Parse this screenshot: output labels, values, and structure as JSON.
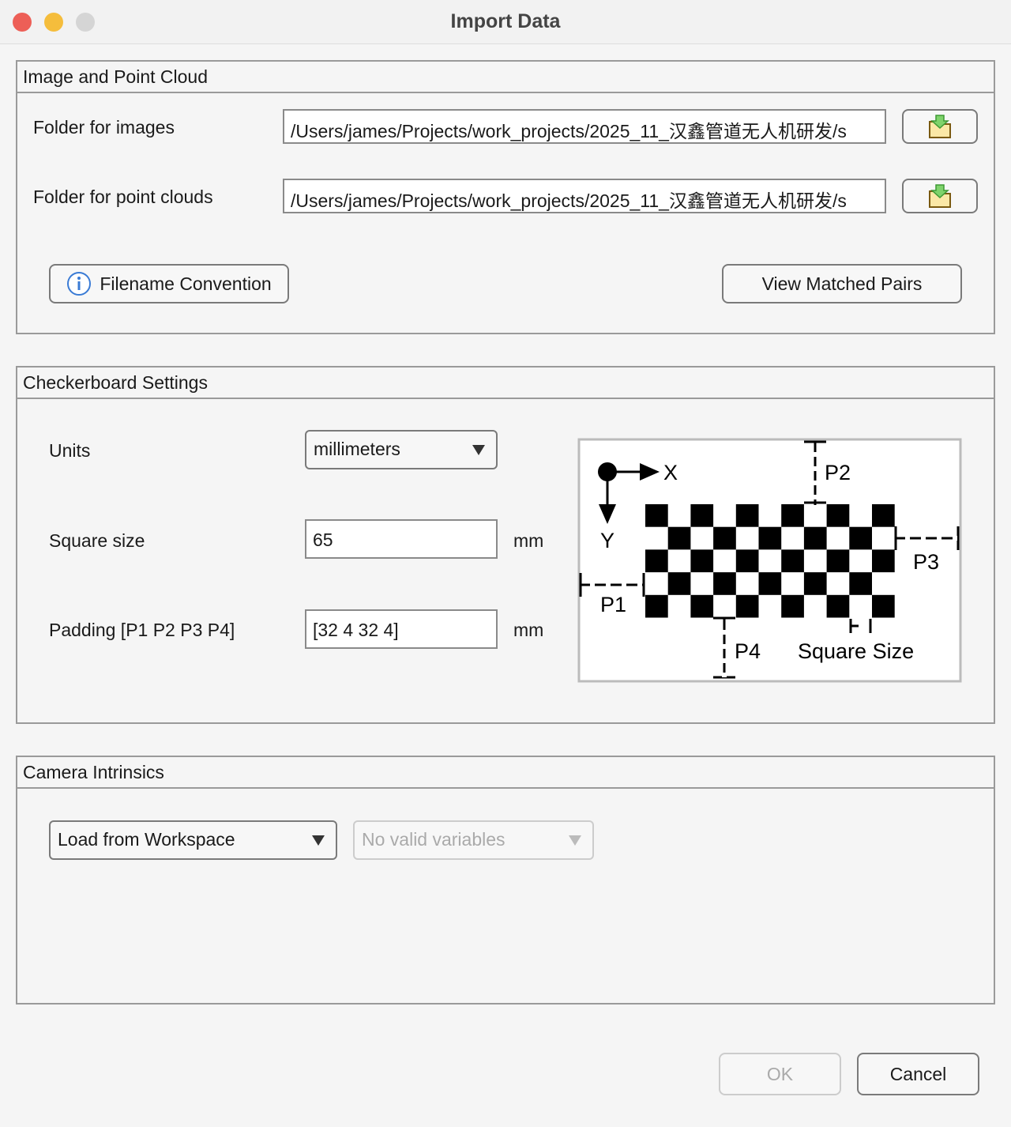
{
  "window": {
    "title": "Import Data"
  },
  "image_panel": {
    "title": "Image and Point Cloud",
    "images_label": "Folder for images",
    "images_value": "/Users/james/Projects/work_projects/2025_11_汉鑫管道无人机研发/s",
    "clouds_label": "Folder for point clouds",
    "clouds_value": "/Users/james/Projects/work_projects/2025_11_汉鑫管道无人机研发/s",
    "browse_icon": "folder-download-icon",
    "filename_convention": "Filename Convention",
    "view_matched_pairs": "View Matched Pairs"
  },
  "checkerboard": {
    "title": "Checkerboard Settings",
    "units_label": "Units",
    "units_value": "millimeters",
    "square_label": "Square size",
    "square_value": "65",
    "square_unit": "mm",
    "padding_label": "Padding [P1 P2 P3 P4]",
    "padding_value": "[32 4 32 4]",
    "padding_unit": "mm",
    "diagram": {
      "x": "X",
      "y": "Y",
      "p1": "P1",
      "p2": "P2",
      "p3": "P3",
      "p4": "P4",
      "square_size": "Square Size"
    }
  },
  "intrinsics": {
    "title": "Camera Intrinsics",
    "source_value": "Load from Workspace",
    "variable_value": "No valid variables"
  },
  "footer": {
    "ok": "OK",
    "cancel": "Cancel"
  }
}
